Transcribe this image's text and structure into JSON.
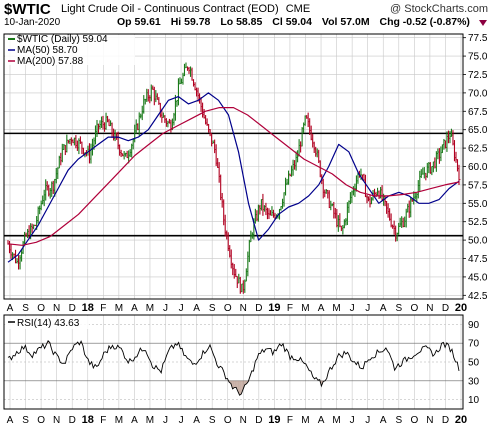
{
  "header": {
    "symbol": "$WTIC",
    "description": "Light Crude Oil - Continuous Contract (EOD)",
    "exchange": "CME",
    "brand": "@ StockCharts.com",
    "date": "10-Jan-2020",
    "open": "Op 59.61",
    "high": "Hi 59.78",
    "low": "Lo 58.85",
    "close": "Cl 59.04",
    "volume": "Vol 57.0M",
    "change": "Chg -0.52 (-0.87%)",
    "change_arrow": "down-triangle-icon"
  },
  "legend": {
    "price": "$WTIC (Daily) 59.04",
    "ma50": "MA(50) 58.70",
    "ma200": "MA(200) 57.88",
    "rsi": "RSI(14) 43.63"
  },
  "colors": {
    "bar_up": "#1a7a1a",
    "bar_down": "#b00020",
    "ma50": "#00008b",
    "ma200": "#b0003a",
    "rsi_line": "#000000",
    "grid": "#c8c8c8"
  },
  "chart_data": [
    {
      "type": "line",
      "title": "Light Crude Oil - Continuous Contract (EOD)",
      "ylim": [
        42,
        78
      ],
      "y_ticks": [
        42.5,
        45.0,
        47.5,
        50.0,
        52.5,
        55.0,
        57.5,
        60.0,
        62.5,
        65.0,
        67.5,
        70.0,
        72.5,
        75.0,
        77.5
      ],
      "y_tick_labels": [
        "42.5",
        "45.0",
        "47.5",
        "50.0",
        "52.5",
        "55.0",
        "57.5",
        "60.0",
        "62.5",
        "65.0",
        "67.5",
        "70.0",
        "72.5",
        "75.0",
        "77.5"
      ],
      "x_labels": [
        "A",
        "S",
        "O",
        "N",
        "D",
        "18",
        "F",
        "M",
        "A",
        "M",
        "J",
        "J",
        "A",
        "S",
        "O",
        "N",
        "D",
        "19",
        "F",
        "M",
        "A",
        "M",
        "J",
        "J",
        "A",
        "S",
        "O",
        "N",
        "D",
        "20"
      ],
      "horizontal_lines": [
        64.5,
        50.6
      ],
      "series": [
        {
          "name": "$WTIC (Daily) 59.04",
          "values": [
            49.5,
            47,
            50.5,
            52,
            56.5,
            57.5,
            62,
            64,
            63,
            61.5,
            65.5,
            66,
            63.5,
            61,
            64,
            68.5,
            70.5,
            67,
            65.5,
            71,
            74,
            70,
            65.5,
            62,
            52,
            46,
            43,
            51,
            55,
            53,
            54,
            58,
            61,
            66.5,
            63,
            57,
            54,
            51,
            56,
            59.5,
            55,
            57,
            54,
            51,
            53,
            56,
            59,
            60,
            62,
            64.5,
            59
          ]
        },
        {
          "name": "MA(50) 58.70",
          "values": [
            47,
            48,
            50,
            52,
            54.5,
            57,
            59.5,
            61,
            62,
            63,
            64,
            64,
            63.5,
            64,
            65,
            67,
            69,
            69.5,
            68.5,
            69,
            70,
            69,
            67,
            62,
            55,
            50,
            51.5,
            53.5,
            54.5,
            55,
            56,
            57.5,
            60,
            63,
            62,
            59,
            57,
            55,
            56,
            56.5,
            56,
            55,
            55,
            55.5,
            57,
            58
          ]
        },
        {
          "name": "MA(200) 57.88",
          "values": [
            49.5,
            49.3,
            49.7,
            50.5,
            52,
            53.5,
            55.5,
            57.5,
            59.5,
            61.5,
            63,
            64.5,
            65.5,
            66.5,
            67.5,
            68,
            68,
            67,
            65.5,
            64,
            62.5,
            61,
            60,
            59,
            57.5,
            56.5,
            56,
            56,
            56.2,
            56.5,
            57,
            57.5,
            57.9
          ]
        }
      ]
    },
    {
      "type": "line",
      "title": "RSI(14) 43.63",
      "ylim": [
        0,
        100
      ],
      "y_ticks": [
        10,
        30,
        50,
        70,
        90
      ],
      "y_tick_labels": [
        "10",
        "30",
        "50",
        "70",
        "90"
      ],
      "x_labels": [
        "A",
        "S",
        "O",
        "N",
        "D",
        "18",
        "F",
        "M",
        "A",
        "M",
        "J",
        "J",
        "A",
        "S",
        "O",
        "N",
        "D",
        "19",
        "F",
        "M",
        "A",
        "M",
        "J",
        "J",
        "A",
        "S",
        "O",
        "N",
        "D",
        "20"
      ],
      "series": [
        {
          "name": "RSI(14) 43.63",
          "values": [
            52,
            60,
            66,
            58,
            64,
            70,
            56,
            48,
            65,
            72,
            50,
            43,
            60,
            68,
            64,
            50,
            58,
            66,
            46,
            40,
            62,
            70,
            56,
            47,
            57,
            68,
            48,
            36,
            22,
            16,
            32,
            56,
            64,
            60,
            70,
            56,
            54,
            46,
            32,
            26,
            42,
            56,
            60,
            50,
            44,
            56,
            60,
            66,
            44,
            50,
            56,
            62,
            64,
            58,
            70,
            64,
            43.63
          ]
        }
      ]
    }
  ]
}
